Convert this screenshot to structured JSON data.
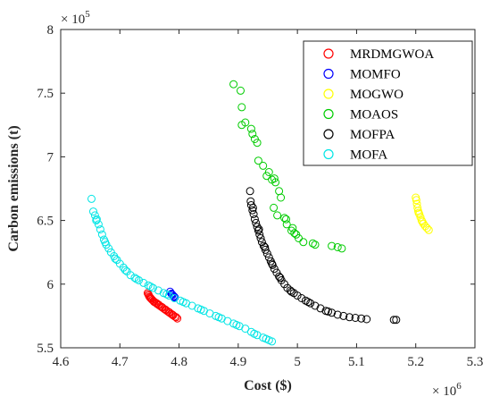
{
  "chart_data": {
    "type": "scatter",
    "xlabel": "Cost ($)",
    "ylabel": "Carbon emissions (t)",
    "x_multiplier_label": "× 10",
    "x_multiplier_exp": "6",
    "y_multiplier_label": "× 10",
    "y_multiplier_exp": "5",
    "xlim": [
      4.6,
      5.3
    ],
    "ylim": [
      5.5,
      8.0
    ],
    "xticks": [
      "4.6",
      "4.7",
      "4.8",
      "4.9",
      "5",
      "5.1",
      "5.2",
      "5.3"
    ],
    "yticks": [
      "5.5",
      "6",
      "6.5",
      "7",
      "7.5",
      "8"
    ],
    "legend_position": "top-right",
    "grid": false,
    "series": [
      {
        "name": "MRDMGWOA",
        "color": "#ff0000",
        "points": [
          [
            4.747,
            5.93
          ],
          [
            4.748,
            5.92
          ],
          [
            4.749,
            5.91
          ],
          [
            4.751,
            5.895
          ],
          [
            4.753,
            5.885
          ],
          [
            4.755,
            5.875
          ],
          [
            4.757,
            5.865
          ],
          [
            4.76,
            5.855
          ],
          [
            4.763,
            5.845
          ],
          [
            4.766,
            5.835
          ],
          [
            4.769,
            5.825
          ],
          [
            4.772,
            5.815
          ],
          [
            4.775,
            5.805
          ],
          [
            4.778,
            5.795
          ],
          [
            4.781,
            5.785
          ],
          [
            4.784,
            5.775
          ],
          [
            4.787,
            5.765
          ],
          [
            4.79,
            5.755
          ],
          [
            4.793,
            5.745
          ],
          [
            4.797,
            5.73
          ],
          [
            4.75,
            5.9
          ],
          [
            4.758,
            5.86
          ],
          [
            4.765,
            5.84
          ],
          [
            4.771,
            5.82
          ],
          [
            4.777,
            5.8
          ],
          [
            4.783,
            5.78
          ],
          [
            4.789,
            5.76
          ],
          [
            4.795,
            5.74
          ],
          [
            4.752,
            5.89
          ],
          [
            4.762,
            5.85
          ]
        ]
      },
      {
        "name": "MOMFO",
        "color": "#0000ff",
        "points": [
          [
            4.785,
            5.94
          ],
          [
            4.787,
            5.925
          ],
          [
            4.789,
            5.915
          ],
          [
            4.791,
            5.905
          ],
          [
            4.793,
            5.895
          ],
          [
            4.788,
            5.92
          ],
          [
            4.792,
            5.9
          ]
        ]
      },
      {
        "name": "MOGWO",
        "color": "#ffff00",
        "points": [
          [
            5.201,
            6.66
          ],
          [
            5.202,
            6.63
          ],
          [
            5.203,
            6.6
          ],
          [
            5.204,
            6.575
          ],
          [
            5.206,
            6.55
          ],
          [
            5.208,
            6.525
          ],
          [
            5.21,
            6.5
          ],
          [
            5.213,
            6.475
          ],
          [
            5.216,
            6.455
          ],
          [
            5.219,
            6.44
          ],
          [
            5.222,
            6.425
          ],
          [
            5.205,
            6.56
          ],
          [
            5.211,
            6.49
          ],
          [
            5.2,
            6.68
          ]
        ]
      },
      {
        "name": "MOAOS",
        "color": "#00cc00",
        "points": [
          [
            4.892,
            7.57
          ],
          [
            4.904,
            7.52
          ],
          [
            4.906,
            7.39
          ],
          [
            4.912,
            7.27
          ],
          [
            4.906,
            7.25
          ],
          [
            4.922,
            7.22
          ],
          [
            4.924,
            7.18
          ],
          [
            4.928,
            7.14
          ],
          [
            4.932,
            7.11
          ],
          [
            4.934,
            6.97
          ],
          [
            4.942,
            6.93
          ],
          [
            4.952,
            6.88
          ],
          [
            4.961,
            6.83
          ],
          [
            4.957,
            6.82
          ],
          [
            4.963,
            6.8
          ],
          [
            4.969,
            6.73
          ],
          [
            4.972,
            6.68
          ],
          [
            4.966,
            6.54
          ],
          [
            4.978,
            6.52
          ],
          [
            4.981,
            6.51
          ],
          [
            4.982,
            6.47
          ],
          [
            4.992,
            6.44
          ],
          [
            4.995,
            6.4
          ],
          [
            4.998,
            6.39
          ],
          [
            5.002,
            6.36
          ],
          [
            5.01,
            6.33
          ],
          [
            5.026,
            6.32
          ],
          [
            5.03,
            6.31
          ],
          [
            5.058,
            6.3
          ],
          [
            5.068,
            6.29
          ],
          [
            5.075,
            6.28
          ],
          [
            4.99,
            6.42
          ],
          [
            4.96,
            6.6
          ],
          [
            4.948,
            6.85
          ]
        ]
      },
      {
        "name": "MOFPA",
        "color": "#000000",
        "points": [
          [
            4.92,
            6.73
          ],
          [
            4.921,
            6.65
          ],
          [
            4.922,
            6.62
          ],
          [
            4.924,
            6.58
          ],
          [
            4.926,
            6.55
          ],
          [
            4.928,
            6.51
          ],
          [
            4.93,
            6.48
          ],
          [
            4.932,
            6.45
          ],
          [
            4.934,
            6.42
          ],
          [
            4.936,
            6.39
          ],
          [
            4.938,
            6.36
          ],
          [
            4.94,
            6.33
          ],
          [
            4.943,
            6.3
          ],
          [
            4.946,
            6.27
          ],
          [
            4.949,
            6.24
          ],
          [
            4.952,
            6.21
          ],
          [
            4.955,
            6.18
          ],
          [
            4.958,
            6.15
          ],
          [
            4.961,
            6.12
          ],
          [
            4.965,
            6.09
          ],
          [
            4.969,
            6.06
          ],
          [
            4.973,
            6.03
          ],
          [
            4.978,
            6.0
          ],
          [
            4.983,
            5.97
          ],
          [
            4.988,
            5.95
          ],
          [
            4.994,
            5.93
          ],
          [
            5.0,
            5.91
          ],
          [
            5.007,
            5.89
          ],
          [
            5.014,
            5.87
          ],
          [
            5.022,
            5.85
          ],
          [
            5.03,
            5.83
          ],
          [
            5.039,
            5.81
          ],
          [
            5.048,
            5.79
          ],
          [
            5.058,
            5.775
          ],
          [
            5.068,
            5.76
          ],
          [
            5.078,
            5.75
          ],
          [
            5.088,
            5.74
          ],
          [
            5.098,
            5.735
          ],
          [
            5.108,
            5.73
          ],
          [
            5.117,
            5.725
          ],
          [
            5.163,
            5.72
          ],
          [
            5.167,
            5.72
          ],
          [
            4.925,
            6.6
          ],
          [
            4.935,
            6.43
          ],
          [
            4.945,
            6.29
          ],
          [
            4.957,
            6.16
          ],
          [
            4.971,
            6.05
          ],
          [
            4.99,
            5.94
          ],
          [
            5.018,
            5.86
          ],
          [
            5.052,
            5.785
          ]
        ]
      },
      {
        "name": "MOFA",
        "color": "#00e5e5",
        "points": [
          [
            4.652,
            6.67
          ],
          [
            4.655,
            6.57
          ],
          [
            4.658,
            6.54
          ],
          [
            4.661,
            6.51
          ],
          [
            4.664,
            6.47
          ],
          [
            4.667,
            6.43
          ],
          [
            4.67,
            6.39
          ],
          [
            4.673,
            6.35
          ],
          [
            4.677,
            6.31
          ],
          [
            4.681,
            6.28
          ],
          [
            4.685,
            6.25
          ],
          [
            4.69,
            6.22
          ],
          [
            4.695,
            6.19
          ],
          [
            4.7,
            6.16
          ],
          [
            4.706,
            6.13
          ],
          [
            4.712,
            6.1
          ],
          [
            4.718,
            6.07
          ],
          [
            4.725,
            6.05
          ],
          [
            4.732,
            6.03
          ],
          [
            4.74,
            6.01
          ],
          [
            4.748,
            5.99
          ],
          [
            4.756,
            5.97
          ],
          [
            4.765,
            5.95
          ],
          [
            4.774,
            5.93
          ],
          [
            4.783,
            5.91
          ],
          [
            4.792,
            5.89
          ],
          [
            4.802,
            5.87
          ],
          [
            4.812,
            5.85
          ],
          [
            4.822,
            5.83
          ],
          [
            4.832,
            5.81
          ],
          [
            4.842,
            5.79
          ],
          [
            4.852,
            5.77
          ],
          [
            4.862,
            5.75
          ],
          [
            4.872,
            5.73
          ],
          [
            4.882,
            5.71
          ],
          [
            4.892,
            5.69
          ],
          [
            4.902,
            5.67
          ],
          [
            4.912,
            5.65
          ],
          [
            4.922,
            5.625
          ],
          [
            4.932,
            5.6
          ],
          [
            4.942,
            5.58
          ],
          [
            4.952,
            5.56
          ],
          [
            4.957,
            5.55
          ],
          [
            4.66,
            6.5
          ],
          [
            4.675,
            6.33
          ],
          [
            4.692,
            6.2
          ],
          [
            4.709,
            6.11
          ],
          [
            4.728,
            6.04
          ],
          [
            4.752,
            5.98
          ],
          [
            4.779,
            5.92
          ],
          [
            4.807,
            5.86
          ],
          [
            4.837,
            5.8
          ],
          [
            4.867,
            5.74
          ],
          [
            4.897,
            5.68
          ],
          [
            4.927,
            5.61
          ],
          [
            4.947,
            5.57
          ]
        ]
      }
    ]
  }
}
